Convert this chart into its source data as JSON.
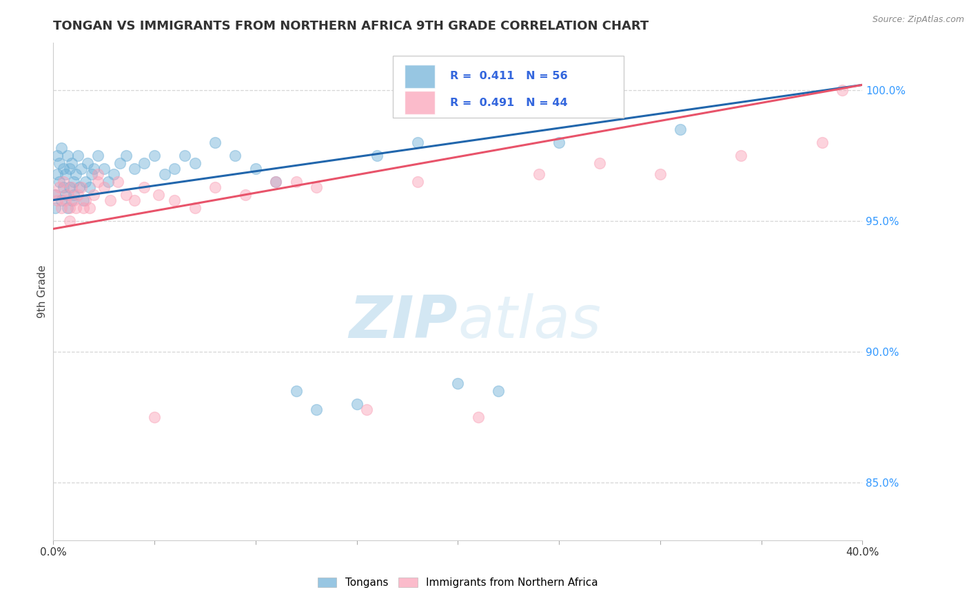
{
  "title": "TONGAN VS IMMIGRANTS FROM NORTHERN AFRICA 9TH GRADE CORRELATION CHART",
  "source_text": "Source: ZipAtlas.com",
  "ylabel": "9th Grade",
  "xmin": 0.0,
  "xmax": 0.4,
  "ymin": 0.828,
  "ymax": 1.018,
  "yticks": [
    0.85,
    0.9,
    0.95,
    1.0
  ],
  "ytick_labels": [
    "85.0%",
    "90.0%",
    "95.0%",
    "100.0%"
  ],
  "xtick_positions": [
    0.0,
    0.05,
    0.1,
    0.15,
    0.2,
    0.25,
    0.3,
    0.35,
    0.4
  ],
  "blue_color": "#6baed6",
  "pink_color": "#fa9fb5",
  "blue_line_color": "#2166ac",
  "pink_line_color": "#e8536a",
  "R_blue": 0.411,
  "N_blue": 56,
  "R_pink": 0.491,
  "N_pink": 44,
  "legend_label_blue": "Tongans",
  "legend_label_pink": "Immigrants from Northern Africa",
  "watermark_zip": "ZIP",
  "watermark_atlas": "atlas",
  "blue_scatter_x": [
    0.001,
    0.001,
    0.002,
    0.002,
    0.003,
    0.003,
    0.004,
    0.004,
    0.005,
    0.005,
    0.006,
    0.006,
    0.007,
    0.007,
    0.008,
    0.008,
    0.009,
    0.009,
    0.01,
    0.01,
    0.011,
    0.012,
    0.013,
    0.014,
    0.015,
    0.016,
    0.017,
    0.018,
    0.019,
    0.02,
    0.022,
    0.025,
    0.027,
    0.03,
    0.033,
    0.036,
    0.04,
    0.045,
    0.05,
    0.055,
    0.06,
    0.065,
    0.07,
    0.08,
    0.09,
    0.1,
    0.11,
    0.12,
    0.13,
    0.15,
    0.16,
    0.18,
    0.2,
    0.22,
    0.25,
    0.31
  ],
  "blue_scatter_y": [
    0.96,
    0.955,
    0.968,
    0.975,
    0.972,
    0.965,
    0.978,
    0.958,
    0.97,
    0.963,
    0.968,
    0.96,
    0.975,
    0.955,
    0.97,
    0.963,
    0.958,
    0.972,
    0.965,
    0.96,
    0.968,
    0.975,
    0.963,
    0.97,
    0.958,
    0.965,
    0.972,
    0.963,
    0.968,
    0.97,
    0.975,
    0.97,
    0.965,
    0.968,
    0.972,
    0.975,
    0.97,
    0.972,
    0.975,
    0.968,
    0.97,
    0.975,
    0.972,
    0.98,
    0.975,
    0.97,
    0.965,
    0.885,
    0.878,
    0.88,
    0.975,
    0.98,
    0.888,
    0.885,
    0.98,
    0.985
  ],
  "pink_scatter_x": [
    0.001,
    0.002,
    0.003,
    0.004,
    0.005,
    0.006,
    0.007,
    0.008,
    0.009,
    0.01,
    0.011,
    0.012,
    0.014,
    0.016,
    0.018,
    0.02,
    0.022,
    0.025,
    0.028,
    0.032,
    0.036,
    0.04,
    0.045,
    0.052,
    0.06,
    0.07,
    0.08,
    0.095,
    0.11,
    0.13,
    0.155,
    0.18,
    0.21,
    0.24,
    0.27,
    0.3,
    0.34,
    0.38,
    0.008,
    0.015,
    0.022,
    0.05,
    0.12,
    0.39
  ],
  "pink_scatter_y": [
    0.96,
    0.958,
    0.963,
    0.955,
    0.965,
    0.958,
    0.96,
    0.955,
    0.963,
    0.958,
    0.955,
    0.96,
    0.963,
    0.958,
    0.955,
    0.96,
    0.965,
    0.963,
    0.958,
    0.965,
    0.96,
    0.958,
    0.963,
    0.96,
    0.958,
    0.955,
    0.963,
    0.96,
    0.965,
    0.963,
    0.878,
    0.965,
    0.875,
    0.968,
    0.972,
    0.968,
    0.975,
    0.98,
    0.95,
    0.955,
    0.968,
    0.875,
    0.965,
    1.0
  ],
  "blue_line_x0": 0.0,
  "blue_line_x1": 0.4,
  "blue_line_y0": 0.958,
  "blue_line_y1": 1.002,
  "pink_line_x0": 0.0,
  "pink_line_x1": 0.4,
  "pink_line_y0": 0.947,
  "pink_line_y1": 1.002
}
